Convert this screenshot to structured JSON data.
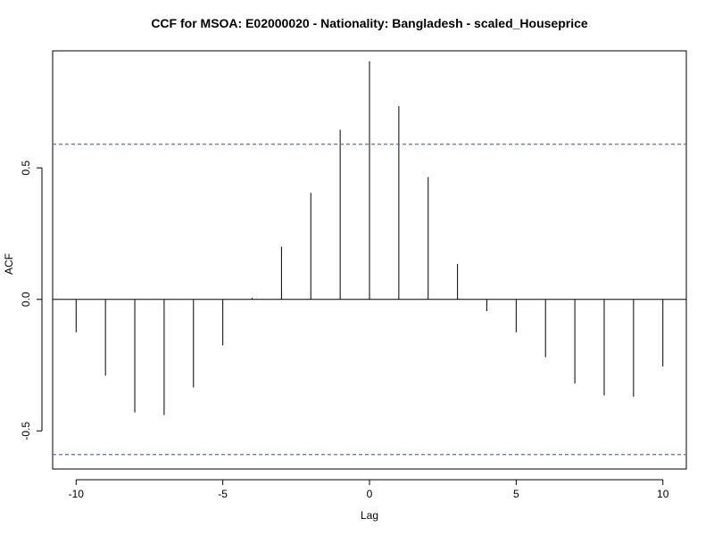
{
  "chart_data": {
    "type": "bar",
    "title": "CCF for MSOA: E02000020 - Nationality: Bangladesh - scaled_Houseprice",
    "xlabel": "Lag",
    "ylabel": "ACF",
    "xlim": [
      -10.8,
      10.8
    ],
    "ylim": [
      -0.645,
      0.945
    ],
    "xticks": [
      -10,
      -5,
      0,
      5,
      10
    ],
    "yticks": [
      -0.5,
      0.0,
      0.5
    ],
    "ytick_labels": [
      "-0.5",
      "0.0",
      "0.5"
    ],
    "grid": false,
    "confidence_bound": 0.59,
    "colors": {
      "bars": "#000000",
      "confidence": "#6666dd",
      "zero_line": "#000000",
      "frame": "#000000"
    },
    "x": [
      -10,
      -9,
      -8,
      -7,
      -6,
      -5,
      -4,
      -3,
      -2,
      -1,
      0,
      1,
      2,
      3,
      4,
      5,
      6,
      7,
      8,
      9,
      10
    ],
    "values": [
      -0.125,
      -0.29,
      -0.43,
      -0.44,
      -0.335,
      -0.175,
      0.005,
      0.2,
      0.405,
      0.645,
      0.905,
      0.735,
      0.465,
      0.135,
      -0.045,
      -0.125,
      -0.22,
      -0.32,
      -0.365,
      -0.37,
      -0.255
    ]
  }
}
